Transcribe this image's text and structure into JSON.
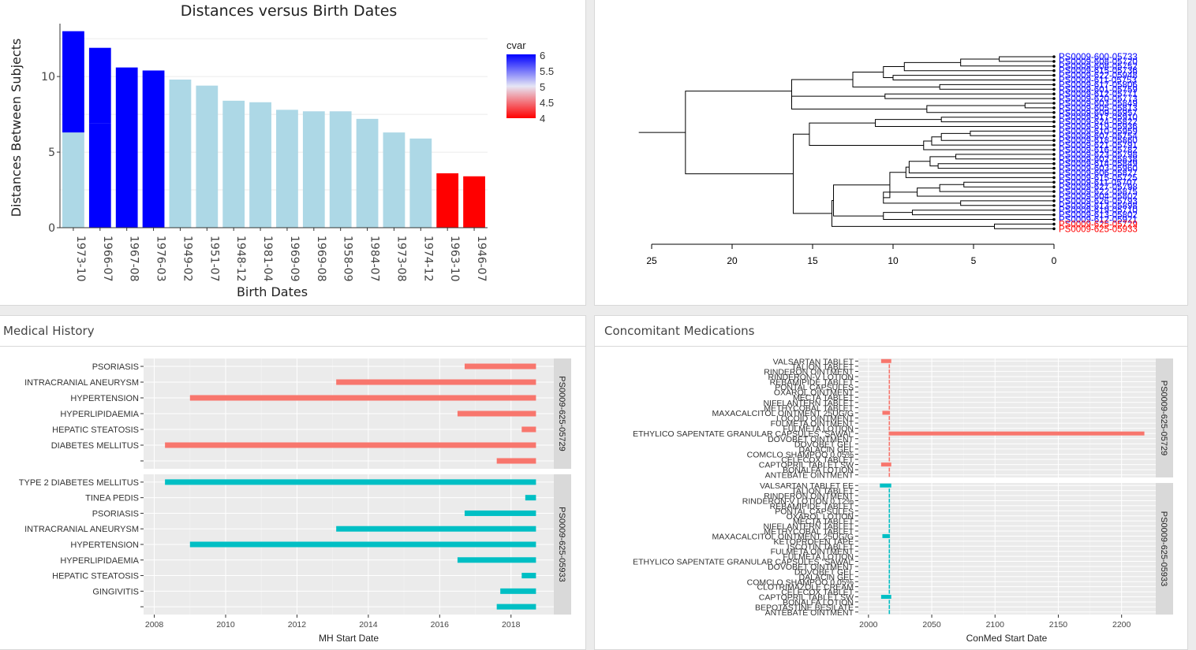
{
  "panels": {
    "medical_history": {
      "title": "Medical History"
    },
    "conmed": {
      "title": "Concomitant Medications"
    }
  },
  "colors": {
    "high": "#0000ff",
    "mid": "#add8e6",
    "low": "#ff0000",
    "subject1": "#f8766d",
    "subject2": "#00bfc4",
    "panel_bg": "#ebebeb",
    "strip_bg": "#d9d9d9"
  },
  "chart_data": [
    {
      "id": "distance-bars",
      "type": "bar",
      "title": "Distances versus Birth Dates",
      "xlabel": "Birth Dates",
      "ylabel": "Distances Between Subjects",
      "ylim": [
        0,
        13.5
      ],
      "yticks": [
        0,
        5,
        10
      ],
      "categories": [
        "1973-10",
        "1966-07",
        "1967-08",
        "1976-03",
        "1949-02",
        "1951-07",
        "1948-12",
        "1981-04",
        "1969-09",
        "1969-08",
        "1958-09",
        "1984-07",
        "1973-08",
        "1974-12",
        "1963-10",
        "1946-07"
      ],
      "series": [
        {
          "values": [
            6.3,
            6.9,
            10.6,
            10.4,
            9.8,
            9.4,
            8.4,
            8.3,
            7.8,
            7.7,
            7.7,
            7.2,
            6.3,
            5.9,
            3.6,
            3.4
          ]
        },
        {
          "values": [
            13.0,
            11.9,
            null,
            null,
            null,
            null,
            null,
            null,
            null,
            null,
            null,
            null,
            null,
            null,
            null,
            null
          ]
        }
      ],
      "fill_levels": [
        "mid",
        "high",
        "high",
        "high",
        "mid",
        "mid",
        "mid",
        "mid",
        "mid",
        "mid",
        "mid",
        "mid",
        "mid",
        "mid",
        "low",
        "low"
      ],
      "legend": {
        "title": "cvar",
        "position": "right",
        "labels": [
          "6",
          "5.5",
          "5",
          "4.5",
          "4"
        ]
      }
    },
    {
      "id": "dendrogram",
      "type": "dendrogram",
      "x_ticks": [
        "25",
        "20",
        "15",
        "10",
        "5",
        "0"
      ],
      "xlim": [
        26,
        0
      ],
      "leaves": [
        {
          "label": "PS0009-600-05733",
          "color": "blue"
        },
        {
          "label": "PS0009-608-05720",
          "color": "blue"
        },
        {
          "label": "PS0009-608-05752",
          "color": "blue"
        },
        {
          "label": "PS0009-615-05736",
          "color": "blue"
        },
        {
          "label": "PS0009-622-05948",
          "color": "blue"
        },
        {
          "label": "PS0009-611-05753",
          "color": "blue"
        },
        {
          "label": "PS0009-617-05806",
          "color": "blue"
        },
        {
          "label": "PS0009-601-05759",
          "color": "blue"
        },
        {
          "label": "PS0009-612-05771",
          "color": "blue"
        },
        {
          "label": "PS0009-620-05773",
          "color": "blue"
        },
        {
          "label": "PS0009-603-05849",
          "color": "blue"
        },
        {
          "label": "PS0009-605-05813",
          "color": "blue"
        },
        {
          "label": "PS0009-609-05957",
          "color": "blue"
        },
        {
          "label": "PS0009-617-05910",
          "color": "blue"
        },
        {
          "label": "PS0009-624-05822",
          "color": "blue"
        },
        {
          "label": "PS0009-619-05936",
          "color": "blue"
        },
        {
          "label": "PS0009-610-05959",
          "color": "blue"
        },
        {
          "label": "PS0009-607-05754",
          "color": "blue"
        },
        {
          "label": "PS0009-618-05860",
          "color": "blue"
        },
        {
          "label": "PS0009-621-05791",
          "color": "blue"
        },
        {
          "label": "PS0009-616-05782",
          "color": "blue"
        },
        {
          "label": "PS0009-623-05798",
          "color": "blue"
        },
        {
          "label": "PS0009-602-05838",
          "color": "blue"
        },
        {
          "label": "PS0009-614-05849",
          "color": "blue"
        },
        {
          "label": "PS0009-603-05960",
          "color": "blue"
        },
        {
          "label": "PS0009-606-05827",
          "color": "blue"
        },
        {
          "label": "PS0009-615-05725",
          "color": "blue"
        },
        {
          "label": "PS0009-611-05707",
          "color": "blue"
        },
        {
          "label": "PS0009-627-05798",
          "color": "blue"
        },
        {
          "label": "PS0009-622-05875",
          "color": "blue"
        },
        {
          "label": "PS0009-604-05802",
          "color": "blue"
        },
        {
          "label": "PS0009-626-05793",
          "color": "blue"
        },
        {
          "label": "PS0009-613-05898",
          "color": "blue"
        },
        {
          "label": "PS0009-619-05710",
          "color": "blue"
        },
        {
          "label": "PS0009-613-05802",
          "color": "blue"
        },
        {
          "label": "PS0009-612-05921",
          "color": "blue"
        },
        {
          "label": "PS0009-625-05729",
          "color": "red"
        },
        {
          "label": "PS0009-625-05933",
          "color": "red"
        }
      ]
    },
    {
      "id": "mh-timeline",
      "type": "bar",
      "orientation": "horizontal",
      "xlabel": "MH Start Date",
      "x_ticks": [
        "2008",
        "2010",
        "2012",
        "2014",
        "2016",
        "2018"
      ],
      "xlim": [
        2007.7,
        2019.2
      ],
      "facets": [
        {
          "strip": "PS0009-625-05729",
          "color": "subject1",
          "terms": [
            "PSORIASIS",
            "INTRACRANIAL ANEURYSM",
            "HYPERTENSION",
            "HYPERLIPIDAEMIA",
            "HEPATIC STEATOSIS",
            "DIABETES MELLITUS",
            ""
          ],
          "start": [
            2016.7,
            2013.1,
            2009.0,
            2016.5,
            2018.3,
            2008.3,
            2017.6
          ],
          "end": [
            2018.7,
            2018.7,
            2018.7,
            2018.7,
            2018.7,
            2018.7,
            2018.7
          ]
        },
        {
          "strip": "PS0009-625-05933",
          "color": "subject2",
          "terms": [
            "TYPE 2 DIABETES MELLITUS",
            "TINEA PEDIS",
            "PSORIASIS",
            "INTRACRANIAL ANEURYSM",
            "HYPERTENSION",
            "HYPERLIPIDAEMIA",
            "HEPATIC STEATOSIS",
            "GINGIVITIS",
            ""
          ],
          "start": [
            2008.3,
            2018.4,
            2016.7,
            2013.1,
            2009.0,
            2016.5,
            2018.3,
            2017.7,
            2017.6
          ],
          "end": [
            2018.7,
            2018.7,
            2018.7,
            2018.7,
            2018.7,
            2018.7,
            2018.7,
            2018.7,
            2018.7
          ]
        }
      ]
    },
    {
      "id": "conmed-timeline",
      "type": "bar",
      "orientation": "horizontal",
      "xlabel": "ConMed Start Date",
      "x_ticks": [
        "2000",
        "2050",
        "2100",
        "2150",
        "2200"
      ],
      "xlim": [
        1992,
        2227
      ],
      "facets": [
        {
          "strip": "PS0009-625-05729",
          "color": "subject1",
          "terms": [
            "VALSARTAN TABLET",
            "TALION TABLET",
            "RINDERON OINTMENT",
            "RINDERON-V LOTION",
            "REBAMIPIDE TABLET",
            "PONTAL CAPSULES",
            "OXAROL OINTMENT",
            "MECTA TABLET",
            "NIFELANTERN TABLET",
            "METHYCOBAL TABLET",
            "MAXACALCITOL OINTMENT 25UG/G",
            "LOCOID OINTMENT",
            "FULMETA OINTMENT",
            "FULMETA LOTION",
            "ETHYLICO SAPENTATE GRANULAR CAPSULES \"SAWAI\"",
            "DOVOBET OINTMENT",
            "DOVOBET GEL",
            "DALACIN GEL",
            "COMCLO SHAMPOO 0.05%",
            "CELECOX TABLET",
            "CAPTOPRIL TABLET SW",
            "BONALFA LOTION",
            "ANTEBATE OINTMENT"
          ],
          "start": [
            2010,
            2016,
            2016,
            2016,
            2016,
            2016,
            2016,
            2016,
            2016,
            2016,
            2011,
            2016,
            2016,
            2016,
            2016,
            2016,
            2016,
            2016,
            2016,
            2016,
            2010,
            2016,
            2016
          ],
          "end": [
            2018,
            2017,
            2017,
            2017,
            2017,
            2017,
            2017,
            2017,
            2017,
            2017,
            2017,
            2017,
            2017,
            2017,
            2218,
            2017,
            2017,
            2017,
            2017,
            2017,
            2018,
            2017,
            2017
          ]
        },
        {
          "strip": "PS0009-625-05933",
          "color": "subject2",
          "terms": [
            "VALSARTAN TABLET EE",
            "TALION TABLET",
            "RINDERON OINTMENT",
            "RINDERON-V LOTION 0.12%",
            "REBAMIPIDE TABLET",
            "PONTAL CAPSULES",
            "OXAROL LOTION",
            "MECTA TABLET",
            "NIFELANTERN TABLET",
            "METHYCOBAL TABLET",
            "MAXACALCITOL OINTMENT 25UG/G",
            "KETOPROFEN TAPE",
            "ISCOTIN TABLET",
            "FULMETA OINTMENT",
            "FULMETA LOTION",
            "ETHYLICO SAPENTATE GRANULAR CAPSULES \"SAWAI\"",
            "DOVOBET OINTMENT",
            "DOVOBET GEL",
            "DALACIN GEL",
            "COMCLO SHAMPOO 0.05%",
            "CLOTRIMAZOLE CREAM",
            "CELECOX TABLET",
            "CAPTOPRIL TABLET SW",
            "BONALFA LOTION",
            "BEPOTASTINE BESILATE",
            "ANTEBATE OINTMENT"
          ],
          "start": [
            2009,
            2016,
            2016,
            2016,
            2016,
            2016,
            2016,
            2016,
            2016,
            2016,
            2011,
            2016,
            2016,
            2016,
            2016,
            2016,
            2016,
            2016,
            2016,
            2016,
            2016,
            2016,
            2010,
            2016,
            2016,
            2016
          ],
          "end": [
            2018,
            2017,
            2017,
            2017,
            2017,
            2017,
            2017,
            2017,
            2017,
            2017,
            2017,
            2017,
            2017,
            2017,
            2017,
            2017,
            2017,
            2017,
            2017,
            2017,
            2017,
            2017,
            2018,
            2017,
            2017,
            2017
          ]
        }
      ]
    }
  ]
}
